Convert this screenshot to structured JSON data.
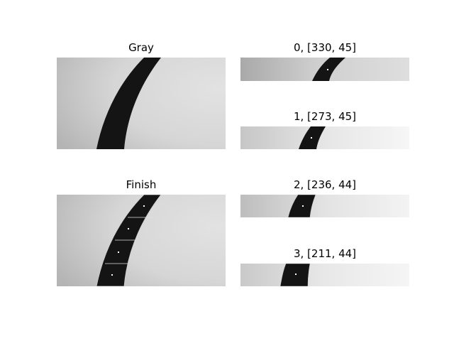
{
  "panels": [
    {
      "id": "gray",
      "title": "Gray"
    },
    {
      "id": "finish",
      "title": "Finish"
    },
    {
      "id": "strip0",
      "title": "0, [330, 45]"
    },
    {
      "id": "strip1",
      "title": "1, [273, 45]"
    },
    {
      "id": "strip2",
      "title": "2, [236, 44]"
    },
    {
      "id": "strip3",
      "title": "3, [211, 44]"
    }
  ]
}
